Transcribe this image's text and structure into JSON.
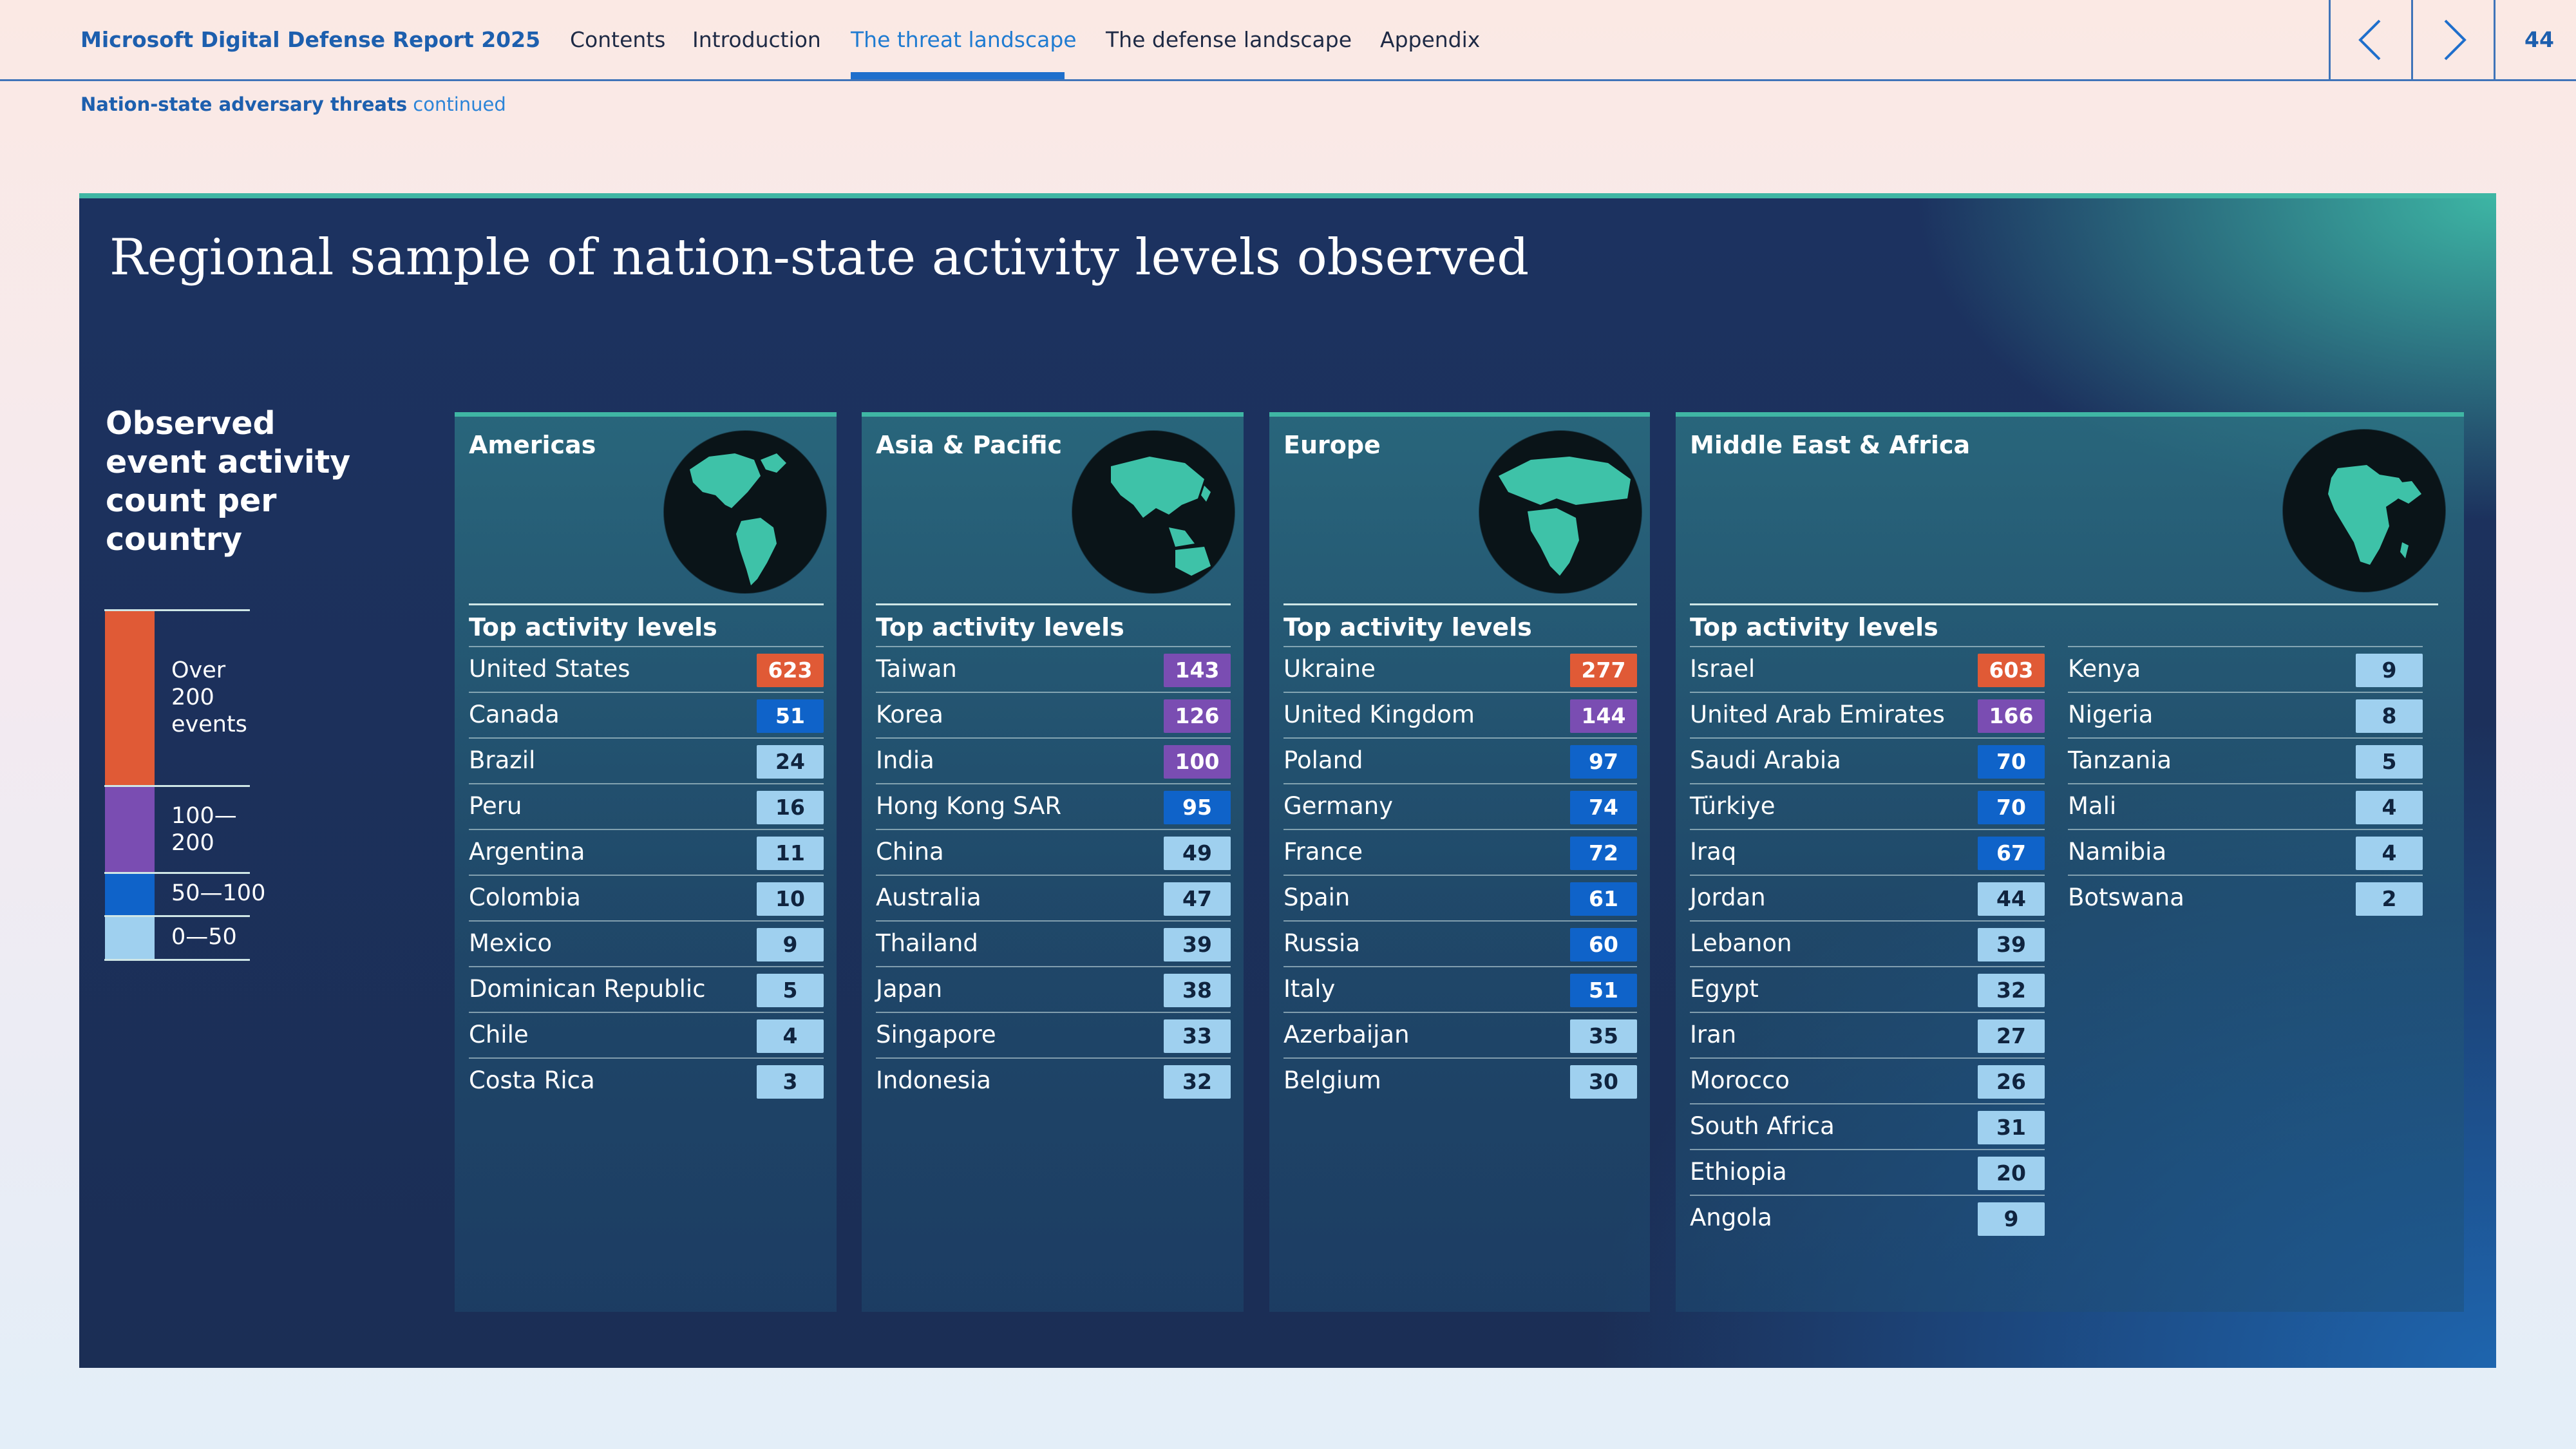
{
  "header": {
    "brand": "Microsoft Digital Defense Report 2025",
    "nav": [
      "Contents",
      "Introduction",
      "The threat landscape",
      "The defense landscape",
      "Appendix"
    ],
    "active_nav": "The threat landscape",
    "page_number": "44",
    "prev_icon": "chevron-left-icon",
    "next_icon": "chevron-right-icon"
  },
  "breadcrumb": {
    "section": "Nation-state adversary threats",
    "suffix": "continued"
  },
  "title": "Regional sample of nation-state activity levels observed",
  "legend": {
    "title": "Observed event activity count per country",
    "bands": [
      {
        "label": "Over 200 events",
        "color": "#e05a36"
      },
      {
        "label": "100—200",
        "color": "#7a4db2"
      },
      {
        "label": "50—100",
        "color": "#0f63c9"
      },
      {
        "label": "0—50",
        "color": "#9fd0ef"
      }
    ]
  },
  "subheading": "Top activity levels",
  "regions": [
    {
      "name": "Americas",
      "globe_icon": "globe-americas-icon",
      "countries": [
        {
          "name": "United States",
          "value": 623
        },
        {
          "name": "Canada",
          "value": 51
        },
        {
          "name": "Brazil",
          "value": 24
        },
        {
          "name": "Peru",
          "value": 16
        },
        {
          "name": "Argentina",
          "value": 11
        },
        {
          "name": "Colombia",
          "value": 10
        },
        {
          "name": "Mexico",
          "value": 9
        },
        {
          "name": "Dominican Republic",
          "value": 5
        },
        {
          "name": "Chile",
          "value": 4
        },
        {
          "name": "Costa Rica",
          "value": 3
        }
      ]
    },
    {
      "name": "Asia & Pacific",
      "globe_icon": "globe-asia-pacific-icon",
      "countries": [
        {
          "name": "Taiwan",
          "value": 143
        },
        {
          "name": "Korea",
          "value": 126
        },
        {
          "name": "India",
          "value": 100
        },
        {
          "name": "Hong Kong SAR",
          "value": 95
        },
        {
          "name": "China",
          "value": 49
        },
        {
          "name": "Australia",
          "value": 47
        },
        {
          "name": "Thailand",
          "value": 39
        },
        {
          "name": "Japan",
          "value": 38
        },
        {
          "name": "Singapore",
          "value": 33
        },
        {
          "name": "Indonesia",
          "value": 32
        }
      ]
    },
    {
      "name": "Europe",
      "globe_icon": "globe-europe-icon",
      "countries": [
        {
          "name": "Ukraine",
          "value": 277
        },
        {
          "name": "United Kingdom",
          "value": 144
        },
        {
          "name": "Poland",
          "value": 97
        },
        {
          "name": "Germany",
          "value": 74
        },
        {
          "name": "France",
          "value": 72
        },
        {
          "name": "Spain",
          "value": 61
        },
        {
          "name": "Russia",
          "value": 60
        },
        {
          "name": "Italy",
          "value": 51
        },
        {
          "name": "Azerbaijan",
          "value": 35
        },
        {
          "name": "Belgium",
          "value": 30
        }
      ]
    },
    {
      "name": "Middle East & Africa",
      "globe_icon": "globe-middle-east-africa-icon",
      "countries": [
        {
          "name": "Israel",
          "value": 603
        },
        {
          "name": "United Arab Emirates",
          "value": 166
        },
        {
          "name": "Saudi Arabia",
          "value": 70
        },
        {
          "name": "Türkiye",
          "value": 70
        },
        {
          "name": "Iraq",
          "value": 67
        },
        {
          "name": "Jordan",
          "value": 44
        },
        {
          "name": "Lebanon",
          "value": 39
        },
        {
          "name": "Egypt",
          "value": 32
        },
        {
          "name": "Iran",
          "value": 27
        },
        {
          "name": "Morocco",
          "value": 26
        },
        {
          "name": "South Africa",
          "value": 31
        },
        {
          "name": "Ethiopia",
          "value": 20
        },
        {
          "name": "Angola",
          "value": 9
        },
        {
          "name": "Kenya",
          "value": 9
        },
        {
          "name": "Nigeria",
          "value": 8
        },
        {
          "name": "Tanzania",
          "value": 5
        },
        {
          "name": "Mali",
          "value": 4
        },
        {
          "name": "Namibia",
          "value": 4
        },
        {
          "name": "Botswana",
          "value": 2
        }
      ]
    }
  ]
}
